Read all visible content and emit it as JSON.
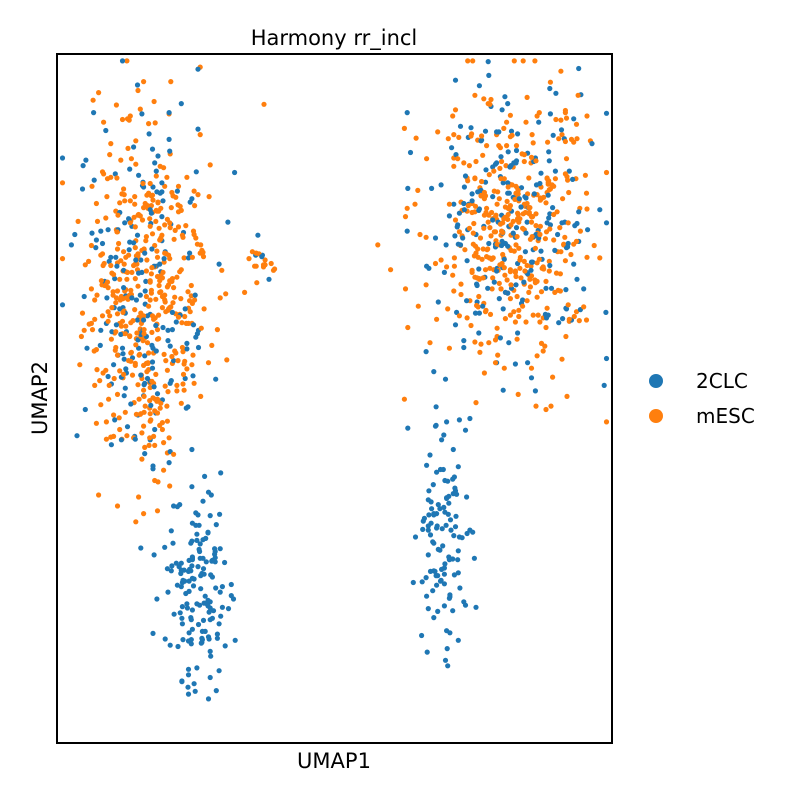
{
  "chart_data": {
    "type": "scatter",
    "title": "Harmony rr_incl",
    "xlabel": "UMAP1",
    "ylabel": "UMAP2",
    "xticks": [],
    "yticks": [],
    "xlim": [
      0,
      100
    ],
    "ylim": [
      0,
      100
    ],
    "grid": false,
    "legend_position": "right",
    "series": [
      {
        "name": "2CLC",
        "color": "#1f77b4",
        "points": []
      },
      {
        "name": "mESC",
        "color": "#ff7f0e",
        "points": []
      }
    ],
    "clusters": [
      {
        "series": "mESC",
        "n": 460,
        "cx": 16,
        "cy": 65,
        "sx": 5.5,
        "sy": 13,
        "sd": 11
      },
      {
        "series": "2CLC",
        "n": 200,
        "cx": 16,
        "cy": 64,
        "sx": 5.8,
        "sy": 14,
        "sd": 12
      },
      {
        "series": "2CLC",
        "n": 150,
        "cx": 25.5,
        "cy": 22,
        "sx": 3.0,
        "sy": 7.5,
        "sd": 21
      },
      {
        "series": "mESC",
        "n": 14,
        "cx": 37,
        "cy": 70,
        "sx": 1.2,
        "sy": 1.4,
        "sd": 31
      },
      {
        "series": "2CLC",
        "n": 5,
        "cx": 37,
        "cy": 71,
        "sx": 1.3,
        "sy": 1.3,
        "sd": 32
      },
      {
        "series": "mESC",
        "n": 420,
        "cx": 82,
        "cy": 74,
        "sx": 7.5,
        "sy": 10,
        "sd": 41
      },
      {
        "series": "2CLC",
        "n": 220,
        "cx": 82,
        "cy": 75,
        "sx": 8.0,
        "sy": 11,
        "sd": 42
      },
      {
        "series": "2CLC",
        "n": 120,
        "cx": 70,
        "cy": 30,
        "sx": 2.6,
        "sy": 8.5,
        "sd": 51
      }
    ]
  },
  "legend": {
    "items": [
      {
        "label": "2CLC",
        "color": "#1f77b4"
      },
      {
        "label": "mESC",
        "color": "#ff7f0e"
      }
    ]
  }
}
